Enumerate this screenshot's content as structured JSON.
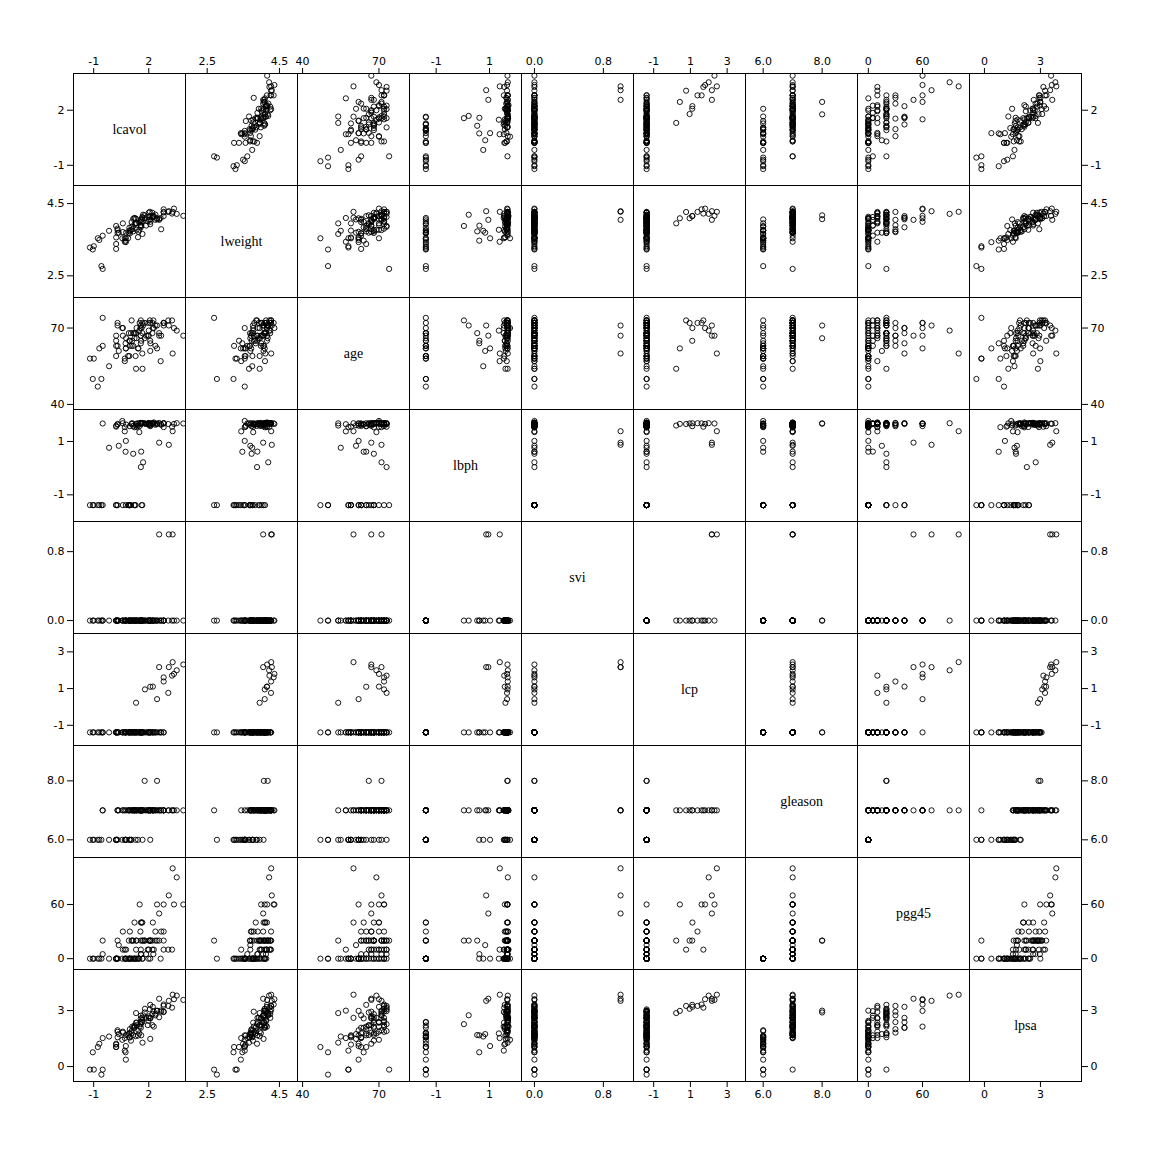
{
  "chart_data": {
    "type": "scatter_matrix",
    "variables": [
      "lcavol",
      "lweight",
      "age",
      "lbph",
      "svi",
      "lcp",
      "gleason",
      "pgg45",
      "lpsa"
    ],
    "axes": {
      "lcavol": {
        "lim": [
          -2.1,
          4.0
        ],
        "ticks": [
          -1,
          2
        ]
      },
      "lweight": {
        "lim": [
          1.9,
          5.0
        ],
        "ticks": [
          2.5,
          4.5
        ]
      },
      "age": {
        "lim": [
          38,
          82
        ],
        "ticks": [
          40,
          70
        ]
      },
      "lbph": {
        "lim": [
          -2.0,
          2.2
        ],
        "ticks": [
          -1,
          1
        ]
      },
      "svi": {
        "lim": [
          -0.15,
          1.15
        ],
        "ticks": [
          {
            "value": 0.0,
            "label": "0.0"
          },
          0.8
        ]
      },
      "lcp": {
        "lim": [
          -2.1,
          4.0
        ],
        "ticks": [
          -1,
          1,
          3
        ]
      },
      "gleason": {
        "lim": [
          5.4,
          9.2
        ],
        "ticks": [
          {
            "value": 6.0,
            "label": "6.0"
          },
          {
            "value": 8.0,
            "label": "8.0"
          }
        ]
      },
      "pgg45": {
        "lim": [
          -12,
          112
        ],
        "ticks": [
          0,
          60
        ]
      },
      "lpsa": {
        "lim": [
          -0.8,
          5.2
        ],
        "ticks": [
          0,
          3
        ]
      }
    },
    "marker": "circle",
    "color": "black",
    "data": [
      [
        -0.5798185,
        2.769459,
        50,
        -1.386294,
        0,
        -1.386294,
        6,
        0,
        -0.4307829
      ],
      [
        -0.9942523,
        3.319626,
        58,
        -1.386294,
        0,
        -1.386294,
        6,
        0,
        -0.1625189
      ],
      [
        -0.5108256,
        2.691243,
        74,
        -1.386294,
        0,
        -1.386294,
        7,
        20,
        -0.1625189
      ],
      [
        -1.2039728,
        3.282789,
        58,
        -1.386294,
        0,
        -1.386294,
        6,
        0,
        -0.1625189
      ],
      [
        0.7514161,
        3.432373,
        62,
        -1.386294,
        0,
        -1.386294,
        6,
        0,
        0.3715636
      ],
      [
        -1.0498221,
        3.228826,
        50,
        -1.386294,
        0,
        -1.386294,
        6,
        0,
        0.7654678
      ],
      [
        0.7372641,
        3.473518,
        64,
        0.615186,
        0,
        -1.386294,
        6,
        0,
        0.7654678
      ],
      [
        0.693147,
        3.539509,
        58,
        1.537006,
        0,
        -1.386294,
        6,
        0,
        0.8544154
      ],
      [
        -0.7765288,
        3.539509,
        47,
        -1.386294,
        0,
        -1.386294,
        6,
        0,
        1.047319
      ],
      [
        0.2231436,
        3.244544,
        63,
        -1.386294,
        0,
        -1.386294,
        6,
        0,
        1.047319
      ],
      [
        0.2231436,
        3.380995,
        65,
        -1.386294,
        0,
        -1.386294,
        6,
        0,
        1.047319
      ],
      [
        0.7514161,
        3.539509,
        62,
        1.021651,
        0,
        -1.386294,
        6,
        0,
        1.0986123
      ],
      [
        0.2231436,
        3.561673,
        59,
        1.556776,
        0,
        -1.386294,
        6,
        0,
        1.178655
      ],
      [
        0.2231436,
        3.879421,
        67,
        1.588454,
        0,
        -1.386294,
        6,
        0,
        1.2237754
      ],
      [
        -0.6931472,
        3.493508,
        62,
        -1.386294,
        0,
        -1.386294,
        6,
        0,
        1.2237754
      ],
      [
        1.6582281,
        3.658407,
        54,
        1.680443,
        0,
        -1.386294,
        6,
        0,
        1.2809338
      ],
      [
        1.0296194,
        3.765469,
        68,
        -1.386294,
        0,
        -1.386294,
        6,
        0,
        1.3865909
      ],
      [
        0.5596158,
        3.539509,
        70,
        1.770108,
        0,
        -1.386294,
        6,
        0,
        1.4350845
      ],
      [
        2.0794415,
        4.060443,
        61,
        1.609438,
        0,
        -1.386294,
        6,
        0,
        1.4828175
      ],
      [
        0.6931472,
        3.442019,
        57,
        1.380148,
        0,
        -1.386294,
        7,
        10,
        1.5260563
      ],
      [
        -0.5108256,
        3.610918,
        63,
        1.674862,
        0,
        -1.386294,
        7,
        5,
        1.5260563
      ],
      [
        0.9694001,
        3.6704,
        63,
        -1.386294,
        0,
        -1.386294,
        6,
        0,
        1.5552144
      ],
      [
        0.9416085,
        3.752321,
        59,
        -1.386294,
        0,
        -1.386294,
        6,
        0,
        1.5686159
      ],
      [
        0.3001046,
        3.686376,
        63,
        -1.386294,
        0,
        -1.386294,
        7,
        20,
        1.5686159
      ],
      [
        -0.1625189,
        3.746099,
        55,
        0.765468,
        0,
        -1.386294,
        6,
        0,
        1.6094379
      ],
      [
        1.2809338,
        3.952244,
        59,
        -1.386294,
        0,
        -1.386294,
        6,
        0,
        1.6292405
      ],
      [
        1.410987,
        3.569533,
        62,
        1.594369,
        0,
        -1.386294,
        6,
        0,
        1.6582281
      ],
      [
        1.5874548,
        3.889421,
        65,
        0.620576,
        0,
        -1.386294,
        7,
        5,
        1.6740306
      ],
      [
        0.8754687,
        3.539509,
        59,
        -1.386294,
        0,
        -1.386294,
        7,
        0,
        1.6740306
      ],
      [
        0.7654678,
        3.694292,
        66,
        1.635423,
        0,
        -1.386294,
        7,
        10,
        1.6906755
      ],
      [
        1.1527,
        3.729727,
        68,
        0.539628,
        0,
        -1.386294,
        7,
        20,
        1.6906755
      ],
      [
        0.3646431,
        3.693868,
        61,
        0.838913,
        0,
        -1.386294,
        7,
        15,
        1.7404661
      ],
      [
        1.484029,
        3.77391,
        69,
        1.351082,
        0,
        -1.386294,
        7,
        0,
        1.7749524
      ],
      [
        0.9416085,
        3.83141,
        65,
        -1.386294,
        0,
        -1.386294,
        7,
        0,
        1.7749524
      ],
      [
        0.9162907,
        3.686376,
        68,
        -1.386294,
        0,
        -1.386294,
        7,
        20,
        1.7749524
      ],
      [
        1.0647107,
        3.986413,
        63,
        1.669486,
        0,
        -1.386294,
        7,
        20,
        1.7917595
      ],
      [
        0.5877867,
        3.710132,
        67,
        -1.386294,
        0,
        -1.386294,
        7,
        30,
        1.8178827
      ],
      [
        0.3001046,
        3.805613,
        72,
        1.633795,
        0,
        -1.386294,
        7,
        0,
        1.861443
      ],
      [
        0.5877867,
        3.952244,
        70,
        1.684944,
        0,
        -1.386294,
        7,
        10,
        1.8718022
      ],
      [
        1.0647107,
        3.857438,
        73,
        1.657979,
        0,
        -1.386294,
        6,
        0,
        1.9021075
      ],
      [
        0.3001046,
        3.765469,
        71,
        1.658478,
        0,
        -1.386294,
        6,
        0,
        1.9459101
      ],
      [
        1.4350845,
        3.718438,
        62,
        1.684944,
        0,
        -1.386294,
        7,
        0,
        1.9459101
      ],
      [
        0.9694001,
        3.729727,
        65,
        1.573464,
        0,
        -1.386294,
        7,
        30,
        2.00148
      ],
      [
        1.2237754,
        4.102309,
        68,
        -1.386294,
        0,
        -1.386294,
        7,
        40,
        2.0794415
      ],
      [
        1.5686159,
        3.843944,
        64,
        1.656426,
        0,
        -1.386294,
        7,
        40,
        2.0794415
      ],
      [
        1.1527,
        4.077537,
        63,
        1.583542,
        0,
        -1.386294,
        7,
        0,
        2.0794415
      ],
      [
        2.2752856,
        4.154813,
        70,
        1.713798,
        0,
        -1.386294,
        7,
        10,
        2.1400662
      ],
      [
        1.0986123,
        3.791202,
        65,
        1.684944,
        0,
        -1.386294,
        7,
        20,
        2.1400662
      ],
      [
        1.2237754,
        4.095809,
        68,
        1.531609,
        0,
        -1.386294,
        7,
        0,
        2.1400662
      ],
      [
        1.5040774,
        3.993731,
        72,
        1.576492,
        0,
        -1.386294,
        7,
        60,
        2.1400662
      ],
      [
        1.2237754,
        3.929561,
        66,
        -1.386294,
        0,
        -1.386294,
        7,
        0,
        2.1972246
      ],
      [
        1.3350011,
        3.95953,
        66,
        1.669486,
        0,
        -1.386294,
        7,
        20,
        2.2192771
      ],
      [
        2.1972246,
        4.124565,
        72,
        1.680443,
        0,
        -1.386294,
        7,
        10,
        2.2192771
      ],
      [
        1.9459101,
        4.007333,
        67,
        1.667456,
        0,
        -1.386294,
        7,
        10,
        2.2192771
      ],
      [
        1.5686159,
        3.880002,
        73,
        0.040822,
        0,
        -1.386294,
        7,
        20,
        2.2721259
      ],
      [
        1.3083328,
        4.079895,
        68,
        1.658478,
        0,
        -1.386294,
        7,
        10,
        2.3513752
      ],
      [
        1.3350011,
        3.77391,
        70,
        1.543399,
        0,
        -1.386294,
        7,
        0,
        2.3513752
      ],
      [
        1.6094379,
        4.062397,
        70,
        -1.386294,
        0,
        -1.386294,
        7,
        40,
        2.3749157
      ],
      [
        1.5439658,
        3.900369,
        70,
        1.694596,
        0,
        -1.386294,
        7,
        30,
        2.382858
      ],
      [
        1.6486586,
        4.007333,
        72,
        -1.386294,
        0,
        -1.386294,
        7,
        0,
        2.3901808
      ],
      [
        1.9810014,
        4.134611,
        72,
        1.684944,
        0,
        -1.386294,
        7,
        0,
        2.4510051
      ],
      [
        1.6486586,
        4.127017,
        68,
        1.690295,
        0,
        -1.386294,
        7,
        20,
        2.5014493
      ],
      [
        2.0879786,
        3.99522,
        64,
        1.631028,
        0,
        -1.386294,
        7,
        20,
        2.5802168
      ],
      [
        1.5686159,
        3.979613,
        67,
        1.694596,
        0,
        -1.386294,
        7,
        10,
        2.5802168
      ],
      [
        1.856298,
        3.891586,
        67,
        1.656426,
        0,
        -1.386294,
        7,
        5,
        2.6094379
      ],
      [
        1.6486586,
        4.109913,
        60,
        1.684944,
        0,
        -1.386294,
        7,
        40,
        2.6094379
      ],
      [
        2.00148,
        4.247495,
        69,
        1.694596,
        0,
        -1.386294,
        7,
        10,
        2.6094379
      ],
      [
        2.0794415,
        3.928252,
        72,
        1.668404,
        0,
        -1.386294,
        7,
        20,
        2.6094379
      ],
      [
        2.5649494,
        4.077537,
        68,
        1.694596,
        0,
        -1.386294,
        7,
        20,
        2.6430717
      ],
      [
        2.0012093,
        4.049931,
        67,
        1.628477,
        0,
        -1.386294,
        7,
        20,
        2.6905733
      ],
      [
        1.5686159,
        4.047285,
        71,
        1.67666,
        0,
        -1.386294,
        7,
        5,
        2.7268395
      ],
      [
        2.360854,
        4.049931,
        63,
        1.625484,
        0,
        -1.386294,
        7,
        30,
        2.7430717
      ],
      [
        1.6906755,
        4.190508,
        71,
        0.220462,
        0,
        -1.386294,
        7,
        20,
        2.7475762
      ],
      [
        2.1972246,
        4.244508,
        68,
        1.659856,
        0,
        -1.386294,
        7,
        20,
        2.809475
      ],
      [
        2.360854,
        4.193959,
        71,
        1.670244,
        0,
        -1.386294,
        7,
        20,
        2.8338929
      ],
      [
        1.3083328,
        3.952244,
        54,
        1.598577,
        0,
        0.226695,
        7,
        20,
        2.8657285
      ],
      [
        1.7749524,
        4.174717,
        66,
        1.680443,
        0,
        -1.386294,
        8,
        20,
        2.8973932
      ],
      [
        2.809475,
        4.153687,
        71,
        1.538862,
        0,
        -1.386294,
        7,
        10,
        2.9209057
      ],
      [
        2.6742734,
        3.788956,
        67,
        1.628477,
        0,
        -1.386294,
        7,
        30,
        2.9404551
      ],
      [
        2.809475,
        4.254093,
        72,
        1.682688,
        0,
        -1.386294,
        7,
        20,
        2.944439
      ],
      [
        2.2512918,
        4.128264,
        73,
        1.679395,
        0,
        -1.386294,
        7,
        5,
        2.9704144
      ],
      [
        2.4510051,
        4.092697,
        62,
        1.660407,
        0,
        0.424993,
        7,
        60,
        2.9827134
      ],
      [
        2.6468453,
        4.100682,
        57,
        1.647847,
        0,
        -1.386294,
        7,
        0,
        2.9959733
      ],
      [
        2.4510051,
        4.069048,
        71,
        1.669486,
        0,
        -1.386294,
        8,
        20,
        2.9959733
      ],
      [
        2.0592373,
        4.271695,
        73,
        1.683416,
        0,
        -1.386294,
        7,
        20,
        3.0634896
      ],
      [
        1.7917595,
        4.093808,
        72,
        1.67666,
        0,
        0.955511,
        7,
        20,
        3.0953679
      ],
      [
        3.2668664,
        4.2234,
        73,
        1.553013,
        0,
        1.704748,
        7,
        10,
        3.1568186
      ],
      [
        2.2215212,
        4.154813,
        70,
        1.682688,
        0,
        1.107143,
        7,
        40,
        3.1986961
      ],
      [
        3.0633678,
        4.266389,
        73,
        1.656426,
        0,
        0.765468,
        7,
        10,
        3.2481554
      ],
      [
        2.809475,
        4.268668,
        72,
        1.684944,
        0,
        1.386294,
        7,
        30,
        3.2504573
      ],
      [
        2.0794415,
        4.153687,
        65,
        1.573464,
        0,
        1.099401,
        7,
        20,
        3.3062153
      ],
      [
        2.809475,
        4.34011,
        72,
        1.679395,
        0,
        1.609438,
        7,
        60,
        3.3242808
      ],
      [
        3.0910425,
        4.288798,
        71,
        0.875469,
        1,
        2.169054,
        7,
        70,
        3.5204438
      ],
      [
        3.8816769,
        4.159899,
        67,
        1.674862,
        0,
        2.31079,
        7,
        60,
        3.5706538
      ],
      [
        3.3729082,
        4.360744,
        70,
        1.660407,
        0,
        1.798509,
        7,
        60,
        3.6078371
      ],
      [
        2.5649494,
        4.049931,
        67,
        0.9562,
        1,
        2.169054,
        7,
        50,
        3.6349909
      ],
      [
        3.5227564,
        4.214616,
        69,
        1.686399,
        0,
        1.995524,
        7,
        90,
        3.8009368
      ],
      [
        3.2998764,
        4.271695,
        60,
        1.386294,
        1,
        2.439935,
        7,
        100,
        3.8501476
      ]
    ]
  }
}
